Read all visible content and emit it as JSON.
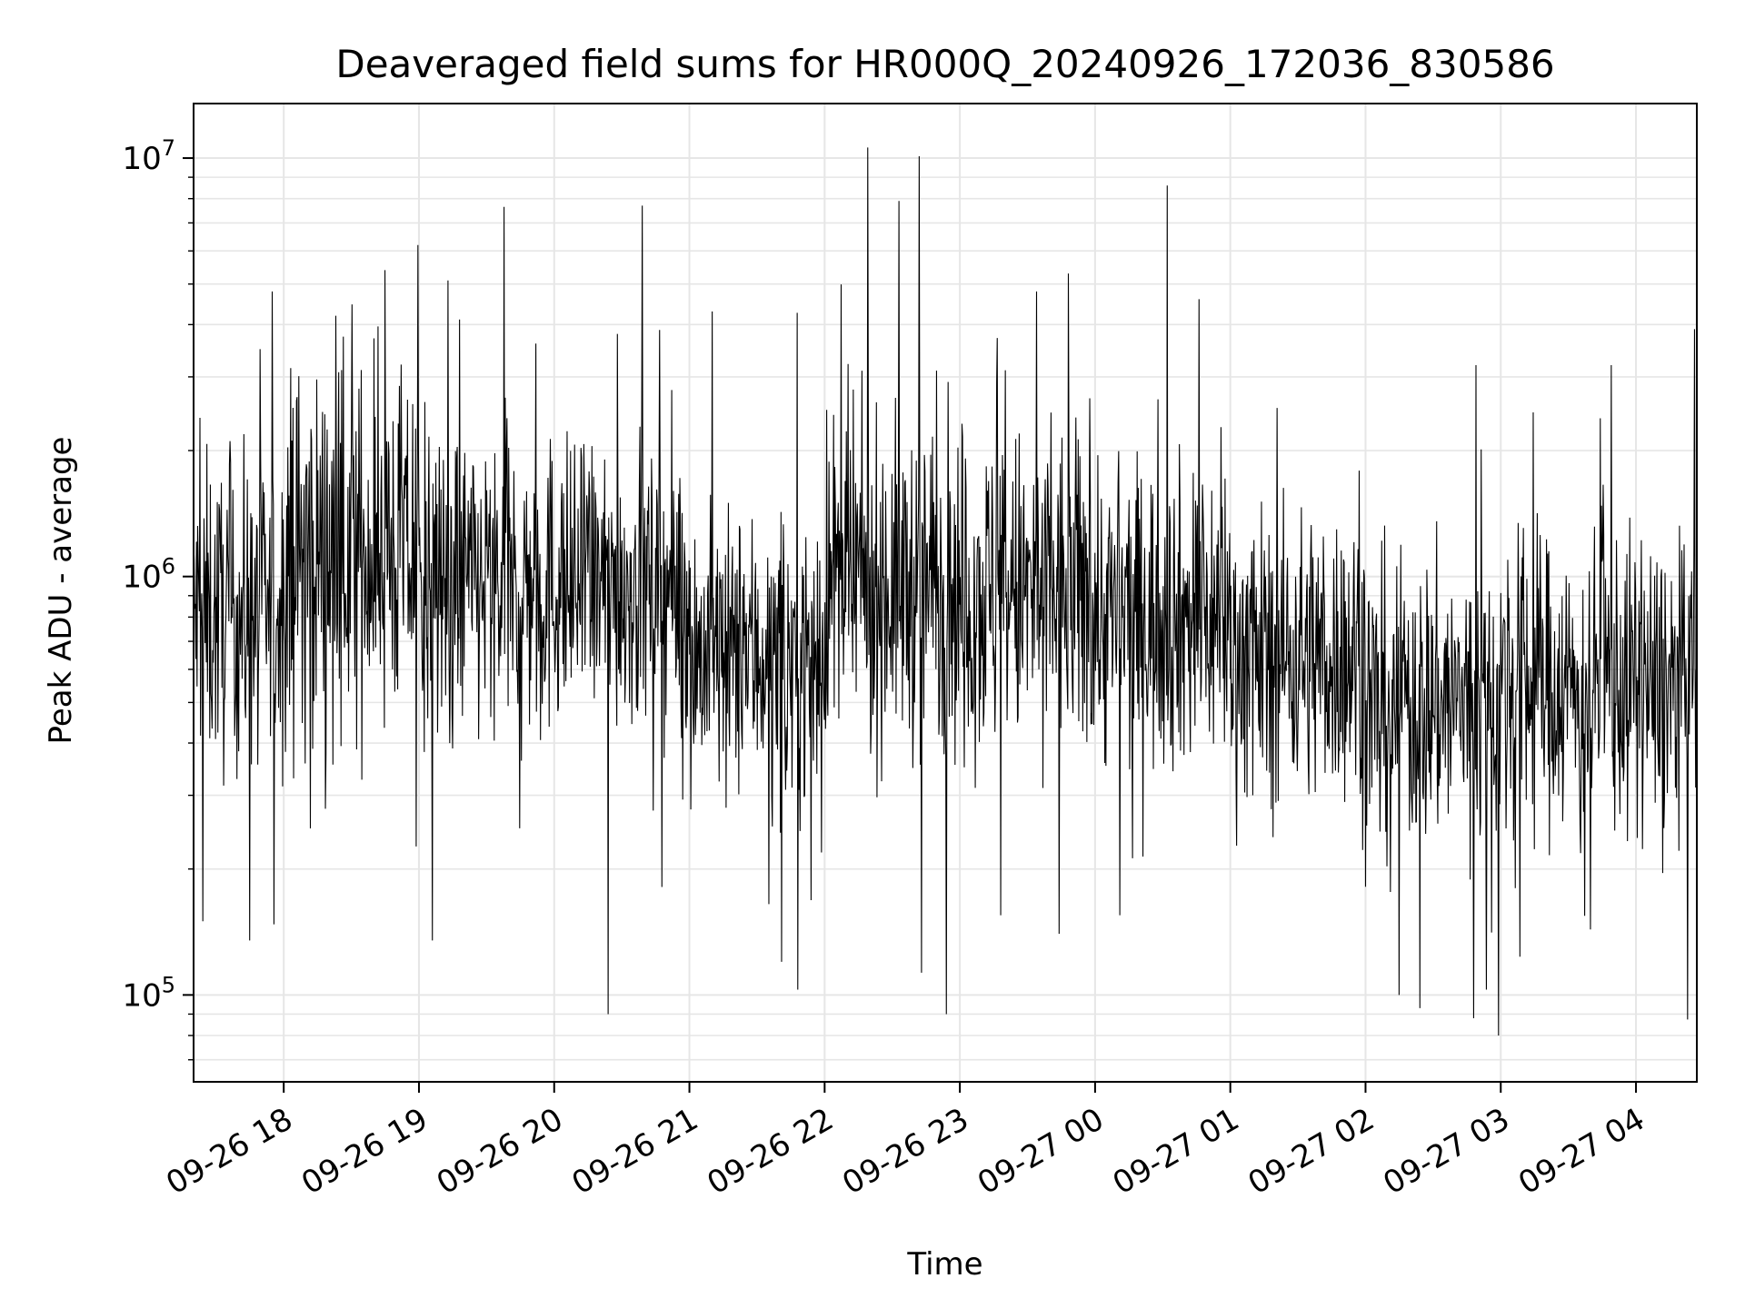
{
  "chart_data": {
    "type": "line",
    "title": "Deaveraged field sums for HR000Q_20240926_172036_830586",
    "xlabel": "Time",
    "ylabel": "Peak ADU - average",
    "yscale": "log",
    "ylim": [
      62000,
      13500000
    ],
    "xlim": [
      "2024-09-26 17:20",
      "2024-09-27 04:27"
    ],
    "grid": true,
    "line_color": "#000000",
    "grid_color": "#e6e6e6",
    "x_ticks": [
      {
        "value": "2024-09-26 18:00",
        "label": "09-26 18"
      },
      {
        "value": "2024-09-26 19:00",
        "label": "09-26 19"
      },
      {
        "value": "2024-09-26 20:00",
        "label": "09-26 20"
      },
      {
        "value": "2024-09-26 21:00",
        "label": "09-26 21"
      },
      {
        "value": "2024-09-26 22:00",
        "label": "09-26 22"
      },
      {
        "value": "2024-09-26 23:00",
        "label": "09-26 23"
      },
      {
        "value": "2024-09-27 00:00",
        "label": "09-27 00"
      },
      {
        "value": "2024-09-27 01:00",
        "label": "09-27 01"
      },
      {
        "value": "2024-09-27 02:00",
        "label": "09-27 02"
      },
      {
        "value": "2024-09-27 03:00",
        "label": "09-27 03"
      },
      {
        "value": "2024-09-27 04:00",
        "label": "09-27 04"
      }
    ],
    "y_ticks": [
      {
        "value": 100000,
        "base": "10",
        "exp": "5"
      },
      {
        "value": 1000000,
        "base": "10",
        "exp": "6"
      },
      {
        "value": 10000000,
        "base": "10",
        "exp": "7"
      }
    ],
    "series": [
      {
        "peaks": [
          {
            "x": "2024-09-26 17:55",
            "y": 4800000
          },
          {
            "x": "2024-09-26 18:23",
            "y": 4200000
          },
          {
            "x": "2024-09-26 18:45",
            "y": 5400000
          },
          {
            "x": "2024-09-26 19:13",
            "y": 5100000
          },
          {
            "x": "2024-09-26 20:28",
            "y": 3800000
          },
          {
            "x": "2024-09-26 20:39",
            "y": 7700000
          },
          {
            "x": "2024-09-26 21:10",
            "y": 4300000
          },
          {
            "x": "2024-09-26 22:19",
            "y": 10600000
          },
          {
            "x": "2024-09-26 22:33",
            "y": 7900000
          },
          {
            "x": "2024-09-26 22:42",
            "y": 10100000
          },
          {
            "x": "2024-09-26 23:34",
            "y": 4800000
          },
          {
            "x": "2024-09-27 00:32",
            "y": 8600000
          },
          {
            "x": "2024-09-27 00:46",
            "y": 4600000
          },
          {
            "x": "2024-09-27 02:49",
            "y": 3200000
          },
          {
            "x": "2024-09-27 03:49",
            "y": 3200000
          },
          {
            "x": "2024-09-27 04:26",
            "y": 3900000
          }
        ],
        "troughs": [
          {
            "x": "2024-09-26 17:24",
            "y": 150000
          },
          {
            "x": "2024-09-26 17:45",
            "y": 135000
          },
          {
            "x": "2024-09-26 19:06",
            "y": 135000
          },
          {
            "x": "2024-09-26 20:24",
            "y": 90000
          },
          {
            "x": "2024-09-26 21:41",
            "y": 120000
          },
          {
            "x": "2024-09-26 21:48",
            "y": 103000
          },
          {
            "x": "2024-09-26 22:43",
            "y": 113000
          },
          {
            "x": "2024-09-26 22:54",
            "y": 90000
          },
          {
            "x": "2024-09-26 23:18",
            "y": 155000
          },
          {
            "x": "2024-09-26 23:44",
            "y": 140000
          },
          {
            "x": "2024-09-27 00:11",
            "y": 155000
          },
          {
            "x": "2024-09-27 02:15",
            "y": 100000
          },
          {
            "x": "2024-09-27 02:24",
            "y": 93000
          },
          {
            "x": "2024-09-27 02:48",
            "y": 88000
          },
          {
            "x": "2024-09-27 02:59",
            "y": 80000
          }
        ],
        "segments": [
          {
            "from": "2024-09-26 17:20",
            "to": "2024-09-26 18:00",
            "center": 800000,
            "spread": 0.26
          },
          {
            "from": "2024-09-26 18:00",
            "to": "2024-09-26 19:00",
            "center": 1150000,
            "spread": 0.3
          },
          {
            "from": "2024-09-26 19:00",
            "to": "2024-09-26 20:00",
            "center": 950000,
            "spread": 0.26
          },
          {
            "from": "2024-09-26 20:00",
            "to": "2024-09-26 21:00",
            "center": 950000,
            "spread": 0.24
          },
          {
            "from": "2024-09-26 21:00",
            "to": "2024-09-26 22:00",
            "center": 650000,
            "spread": 0.24
          },
          {
            "from": "2024-09-26 22:00",
            "to": "2024-09-26 23:00",
            "center": 950000,
            "spread": 0.28
          },
          {
            "from": "2024-09-26 23:00",
            "to": "2024-09-27 00:00",
            "center": 900000,
            "spread": 0.28
          },
          {
            "from": "2024-09-27 00:00",
            "to": "2024-09-27 01:00",
            "center": 800000,
            "spread": 0.26
          },
          {
            "from": "2024-09-27 01:00",
            "to": "2024-09-27 02:00",
            "center": 650000,
            "spread": 0.25
          },
          {
            "from": "2024-09-27 02:00",
            "to": "2024-09-27 03:00",
            "center": 500000,
            "spread": 0.25
          },
          {
            "from": "2024-09-27 03:00",
            "to": "2024-09-27 04:27",
            "center": 550000,
            "spread": 0.25
          }
        ]
      }
    ]
  }
}
